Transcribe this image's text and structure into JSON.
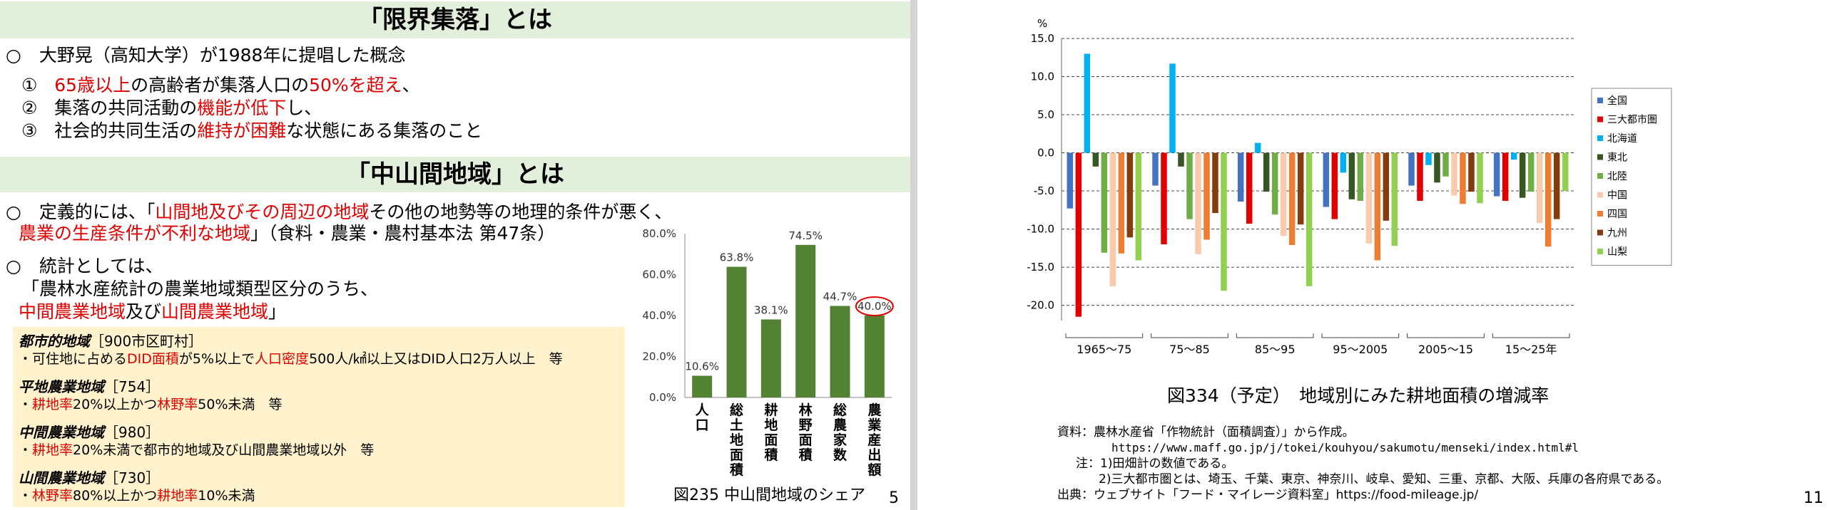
{
  "left_slide": {
    "title1": "「限界集落」とは",
    "concept_line": "○　大野晃（高知大学）が1988年に提唱した概念",
    "item1": {
      "num": "①",
      "a": "65歳以上",
      "b": "の高齢者が集落人口の",
      "c": "50%を超え",
      "d": "、"
    },
    "item2": {
      "num": "②",
      "a": "集落の共同活動の",
      "b": "機能が低下",
      "c": "し、"
    },
    "item3": {
      "num": "③",
      "a": "社会的共同生活の",
      "b": "維持が困難",
      "c": "な状態にある集落のこと"
    },
    "title2": "「中山間地域」とは",
    "def1": {
      "a": "○　定義的には、「",
      "b": "山間地及びその周辺の地域",
      "c": "その他の地勢等の地理的条件が悪く、"
    },
    "def2": {
      "a": "農業の生産条件が不利な地域",
      "b": "」（食料・農業・農村基本法 第47条）"
    },
    "stat1": "○　統計としては、",
    "stat2": "「農林水産統計の農業地域類型区分のうち、",
    "stat3": {
      "a": "中間農業地域",
      "b": "及び",
      "c": "山間農業地域",
      "d": "」"
    },
    "box": {
      "urban_title": "都市的地域",
      "urban_count": "［900市区町村］",
      "urban_line": {
        "a": "・可住地に占める",
        "b": "DID面積",
        "c": "が5%以上で",
        "d": "人口密度",
        "e": "500人/㎢以上又はDID人口2万人以上　等"
      },
      "flat_title": "平地農業地域",
      "flat_count": "［754］",
      "flat_line": {
        "a": "・",
        "b": "耕地率",
        "c": "20%以上かつ",
        "d": "林野率",
        "e": "50%未満　等"
      },
      "mid_title": "中間農業地域",
      "mid_count": "［980］",
      "mid_line": {
        "a": "・",
        "b": "耕地率",
        "c": "20%未満で都市的地域及び山間農業地域以外　等"
      },
      "mtn_title": "山間農業地域",
      "mtn_count": "［730］",
      "mtn_line": {
        "a": "・",
        "b": "林野率",
        "c": "80%以上かつ",
        "d": "耕地率",
        "e": "10%未満"
      }
    },
    "figure_caption": "図235 中山間地域のシェア",
    "page_number": "5"
  },
  "right_slide": {
    "figure_caption": "図334（予定）　地域別にみた耕地面積の増減率",
    "source_lines": [
      "資料：農林水産省「作物統計（面積調査）」から作成。",
      "https://www.maff.go.jp/j/tokei/kouhyou/sakumotu/menseki/index.html#l",
      "注：1)田畑計の数値である。",
      "2)三大都市圏とは、埼玉、千葉、東京、神奈川、岐阜、愛知、三重、京都、大阪、兵庫の各府県である。",
      "出典：ウェブサイト「フード・マイレージ資料室」https://food-mileage.jp/"
    ],
    "page_number": "11"
  },
  "colors": {
    "accent_red": "#e00000",
    "band_green": "#e2efda",
    "bar_green": "#548235",
    "box_yellow": "#fff2cc"
  },
  "chart_data": [
    {
      "type": "bar",
      "categories": [
        "人口",
        "総土地面積",
        "耕地面積",
        "林野面積",
        "総農家数",
        "農業産出額"
      ],
      "values": [
        10.6,
        63.8,
        38.1,
        74.5,
        44.7,
        40.0
      ],
      "value_labels": [
        "10.6%",
        "63.8%",
        "38.1%",
        "74.5%",
        "44.7%",
        "40.0%"
      ],
      "y_ticks": [
        "0.0%",
        "20.0%",
        "40.0%",
        "60.0%",
        "80.0%"
      ],
      "ylim": [
        0,
        80
      ],
      "highlighted": "農業産出額",
      "color": "#548235"
    },
    {
      "type": "bar",
      "unit": "%",
      "categories": [
        "1965〜75",
        "75〜85",
        "85〜95",
        "95〜2005",
        "2005〜15",
        "15〜25年"
      ],
      "series": [
        {
          "name": "全国",
          "color": "#4472c4",
          "values": [
            -7.3,
            -4.3,
            -6.4,
            -7.1,
            -4.3,
            -5.7
          ]
        },
        {
          "name": "三大都市圏",
          "color": "#e00000",
          "values": [
            -21.5,
            -12.0,
            -9.3,
            -8.7,
            -6.3,
            -6.3
          ]
        },
        {
          "name": "北海道",
          "color": "#00b0f0",
          "values": [
            13.0,
            11.7,
            1.3,
            -2.6,
            -1.6,
            -0.9
          ]
        },
        {
          "name": "東北",
          "color": "#375623",
          "values": [
            -1.8,
            -1.8,
            -5.1,
            -6.1,
            -3.9,
            -5.9
          ]
        },
        {
          "name": "北陸",
          "color": "#70ad47",
          "values": [
            -13.1,
            -8.7,
            -8.1,
            -6.3,
            -3.1,
            -5.1
          ]
        },
        {
          "name": "中国",
          "color": "#f8cbad",
          "values": [
            -17.5,
            -13.3,
            -10.9,
            -11.9,
            -5.6,
            -9.2
          ]
        },
        {
          "name": "四国",
          "color": "#ed7d31",
          "values": [
            -13.2,
            -11.4,
            -12.1,
            -14.1,
            -6.7,
            -12.3
          ]
        },
        {
          "name": "九州",
          "color": "#843c0c",
          "values": [
            -11.1,
            -7.9,
            -9.4,
            -8.9,
            -5.1,
            -8.7
          ]
        },
        {
          "name": "山梨",
          "color": "#92d050",
          "values": [
            -14.1,
            -18.1,
            -17.5,
            -12.2,
            -6.6,
            -5.0
          ]
        }
      ],
      "y_ticks": [
        "15.0",
        "10.0",
        "5.0",
        "0.0",
        "-5.0",
        "-10.0",
        "-15.0",
        "-20.0"
      ],
      "ylim": [
        -22,
        15
      ],
      "grid": "dashed horizontal",
      "legend": "right"
    }
  ]
}
